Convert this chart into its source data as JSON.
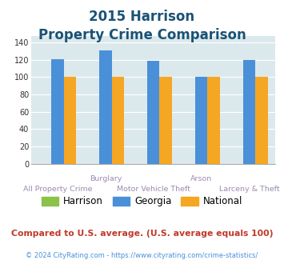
{
  "title_line1": "2015 Harrison",
  "title_line2": "Property Crime Comparison",
  "categories": [
    "All Property Crime",
    "Burglary",
    "Motor Vehicle Theft",
    "Arson",
    "Larceny & Theft"
  ],
  "harrison": [
    0,
    0,
    0,
    0,
    0
  ],
  "georgia": [
    121,
    131,
    119,
    100,
    120
  ],
  "national": [
    100,
    100,
    100,
    100,
    100
  ],
  "harrison_color": "#8bc34a",
  "georgia_color": "#4a90d9",
  "national_color": "#f5a623",
  "ylim": [
    0,
    148
  ],
  "yticks": [
    0,
    20,
    40,
    60,
    80,
    100,
    120,
    140
  ],
  "plot_bg": "#dce9ec",
  "title_color": "#1a5276",
  "xlabel_color_row1": "#9b8bb0",
  "xlabel_color_row2": "#9b8bb0",
  "footer_text": "© 2024 CityRating.com - https://www.cityrating.com/crime-statistics/",
  "compare_text": "Compared to U.S. average. (U.S. average equals 100)",
  "compare_color": "#c0392b",
  "footer_color": "#4a90d9",
  "bar_width": 0.26,
  "grid_color": "white",
  "title_fontsize": 12,
  "legend_fontsize": 8.5,
  "tick_fontsize": 7,
  "label_fontsize": 6.8
}
